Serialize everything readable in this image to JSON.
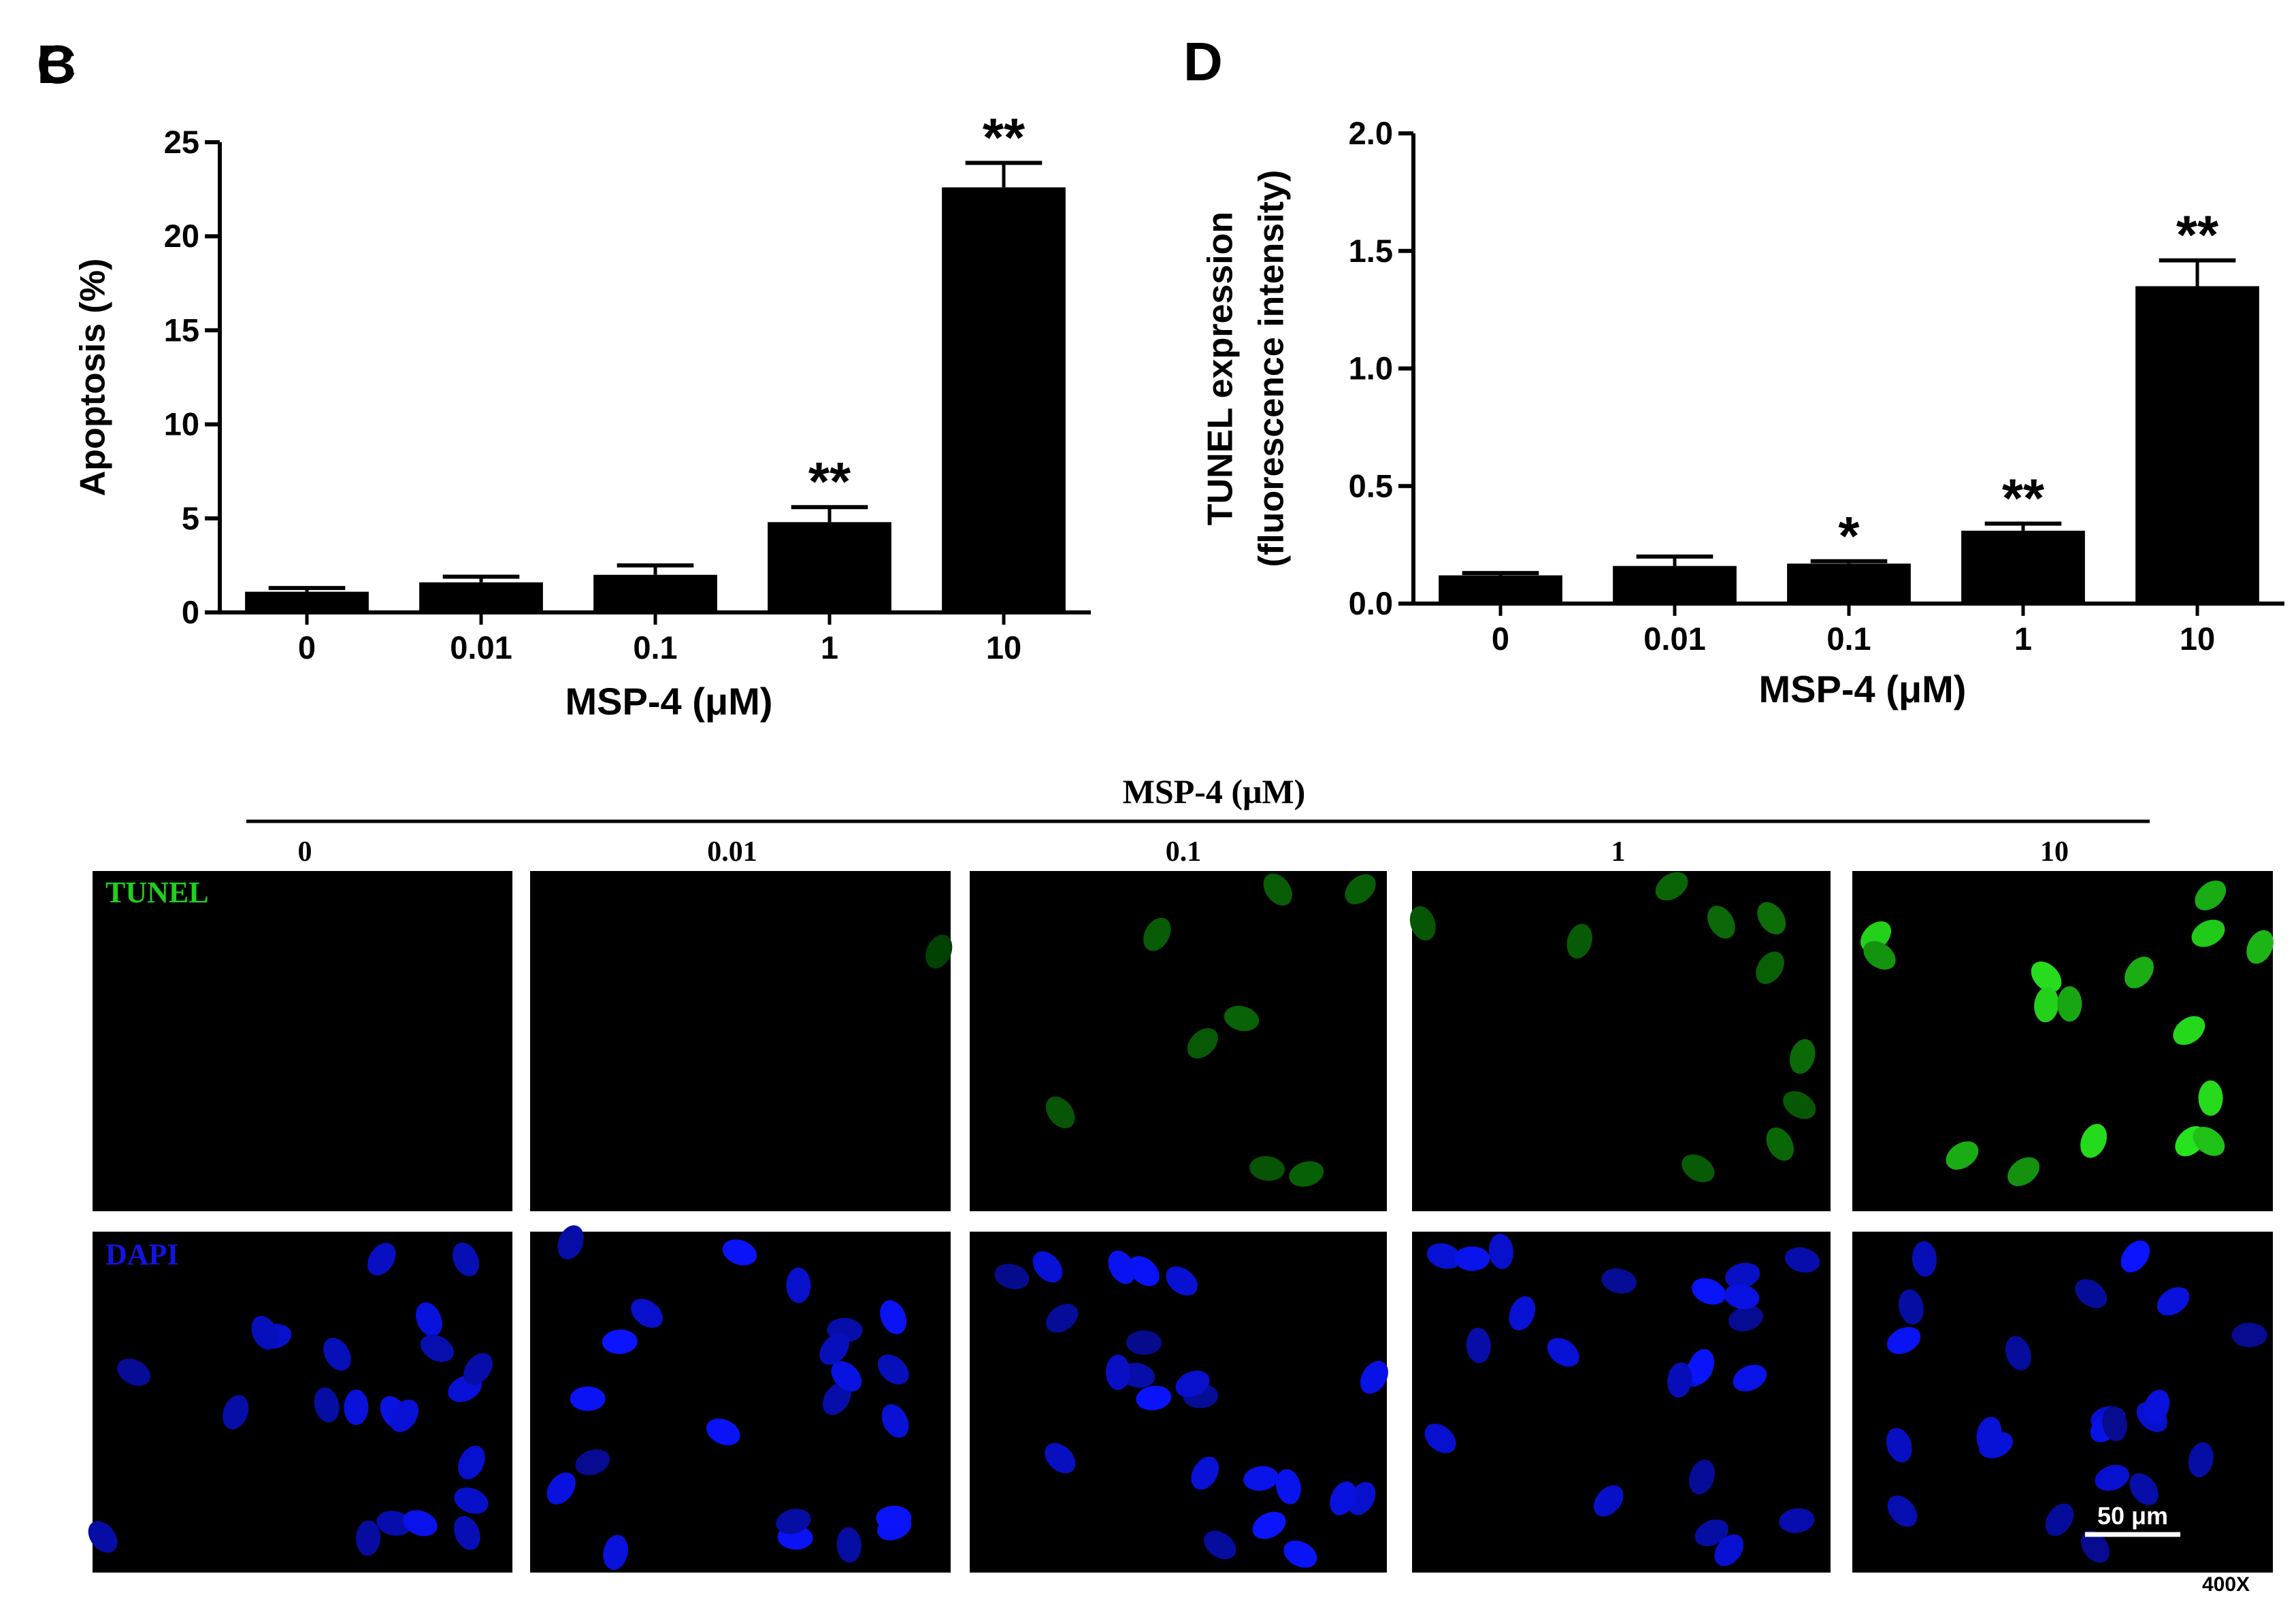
{
  "chart_data": [
    {
      "type": "bar",
      "panel_label": "B",
      "categories": [
        "0",
        "0.01",
        "0.1",
        "1",
        "10"
      ],
      "values": [
        1.1,
        1.6,
        2.0,
        4.8,
        22.6
      ],
      "errors": [
        0.2,
        0.3,
        0.5,
        0.8,
        1.3
      ],
      "significance": [
        null,
        null,
        null,
        "**",
        "**"
      ],
      "color": "#000000",
      "xlabel": "MSP-4 (μM)",
      "ylabel": [
        "Apoptosis (%)"
      ],
      "ylim": [
        0,
        25
      ],
      "yticks": [
        0,
        5,
        10,
        15,
        20,
        25
      ]
    },
    {
      "type": "bar",
      "panel_label": "D",
      "categories": [
        "0",
        "0.01",
        "0.1",
        "1",
        "10"
      ],
      "values": [
        0.12,
        0.16,
        0.17,
        0.31,
        1.35
      ],
      "errors": [
        0.01,
        0.04,
        0.01,
        0.03,
        0.11
      ],
      "significance": [
        null,
        null,
        "*",
        "**",
        "**"
      ],
      "color": "#000000",
      "xlabel": "MSP-4 (μM)",
      "ylabel": [
        "TUNEL expression",
        "(fluorescence intensity)"
      ],
      "ylim": [
        0,
        2
      ],
      "yticks": [
        {
          "value": 0,
          "label": "0.0"
        },
        0.5,
        {
          "value": 1,
          "label": "1.0"
        },
        1.5,
        {
          "value": 2,
          "label": "2.0"
        }
      ]
    }
  ],
  "figure": {
    "panel_label": "C",
    "header": "MSP-4 (μM)",
    "columns": [
      "0",
      "0.01",
      "0.1",
      "1",
      "10"
    ],
    "rows": [
      "TUNEL",
      "DAPI"
    ],
    "scale_bar": "50 μm",
    "magnification": "400X"
  }
}
